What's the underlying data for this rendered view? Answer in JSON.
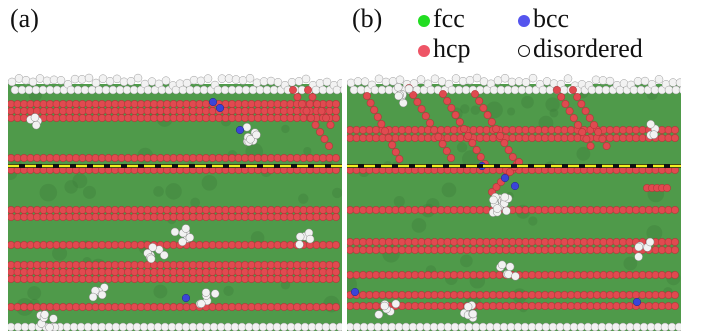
{
  "panels": [
    {
      "label": "(a)"
    },
    {
      "label": "(b)"
    }
  ],
  "legend": {
    "items": [
      {
        "label": "fcc",
        "color": "#22dd22"
      },
      {
        "label": "bcc",
        "color": "#5555ee"
      },
      {
        "label": "hcp",
        "color": "#ee5566"
      },
      {
        "label": "disordered",
        "color": "#ffffff"
      }
    ]
  },
  "colors": {
    "fcc_background": "#4f9a4a",
    "fcc_dark": "#3c7a38",
    "hcp": "#e04a50",
    "hcp_dark": "#b83238",
    "disordered": "#f2f2f2",
    "bcc": "#3a44d8",
    "dashed_line": "#f0f020"
  }
}
